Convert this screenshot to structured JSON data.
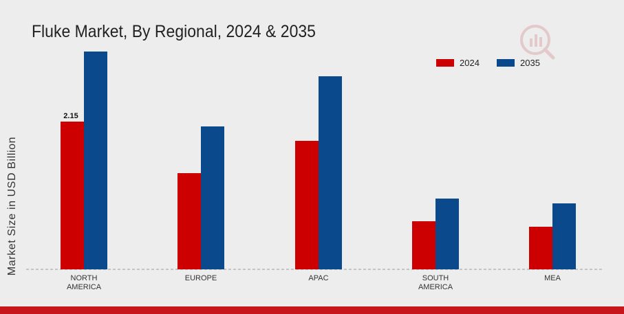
{
  "title": "Fluke Market, By Regional, 2024 & 2035",
  "colors": {
    "2024": "#cc0000",
    "2035": "#0a4a8c",
    "accent_bar": "#c8161d"
  },
  "chart_data": {
    "type": "bar",
    "title": "Fluke Market, By Regional, 2024 & 2035",
    "xlabel": "",
    "ylabel": "Market Size in USD Billion",
    "categories": [
      "NORTH\nAMERICA",
      "EUROPE",
      "APAC",
      "SOUTH\nAMERICA",
      "MEA"
    ],
    "series": [
      {
        "name": "2024",
        "color": "#cc0000",
        "values": [
          2.15,
          1.4,
          1.87,
          0.7,
          0.62
        ]
      },
      {
        "name": "2035",
        "color": "#0a4a8c",
        "values": [
          3.17,
          2.08,
          2.81,
          1.03,
          0.96
        ]
      }
    ],
    "data_labels": [
      {
        "series": "2024",
        "category_index": 0,
        "text": "2.15"
      }
    ],
    "ylim": [
      0,
      3.5
    ],
    "grid": false,
    "legend": "top-right"
  }
}
